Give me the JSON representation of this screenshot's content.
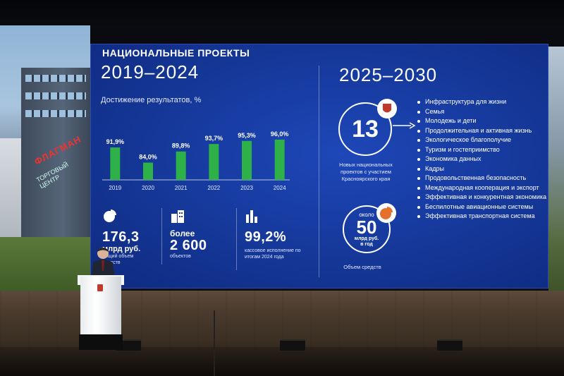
{
  "slide": {
    "heading": "НАЦИОНАЛЬНЫЕ ПРОЕКТЫ",
    "period_left": "2019–2024",
    "period_right": "2025–2030",
    "chart_title": "Достижение результатов, %",
    "colors": {
      "bar": "#2fb14a",
      "background": "#163a9e",
      "text": "#ffffff"
    },
    "stats": [
      {
        "icon": "pie-chart-icon",
        "value": "176,3",
        "unit": "млрд руб.",
        "caption": "общий объем средств"
      },
      {
        "icon": "buildings-icon",
        "value_prefix": "более",
        "value": "2 600",
        "caption": "объектов"
      },
      {
        "icon": "bar-chart-icon",
        "value": "99,2%",
        "caption": "кассовое исполнение по итогам 2024 года"
      }
    ],
    "projects_count": "13",
    "projects_caption": "Новых национальных проектов с участием Красноярского края",
    "funding_prefix": "около",
    "funding_value": "50",
    "funding_unit": "млрд руб. в год",
    "funding_caption": "Объем средств",
    "projects": [
      "Инфраструктура для жизни",
      "Семья",
      "Молодежь и дети",
      "Продолжительная и активная жизнь",
      "Экологическое благополучие",
      "Туризм и гостеприимство",
      "Экономика данных",
      "Кадры",
      "Продовольственная безопасность",
      "Международная кооперация и экспорт",
      "Эффективная и конкурентная экономика",
      "Беспилотные авиационные системы",
      "Эффективная транспортная система"
    ]
  },
  "left_screen": {
    "sign": "ФЛАГМАН",
    "sign_sub": "ТОРГОВЫЙ ЦЕНТР"
  },
  "chart_data": {
    "type": "bar",
    "categories": [
      "2019",
      "2020",
      "2021",
      "2022",
      "2023",
      "2024"
    ],
    "values": [
      91.9,
      84.0,
      89.8,
      93.7,
      95.3,
      96.0
    ],
    "labels": [
      "91,9%",
      "84,0%",
      "89,8%",
      "93,7%",
      "95,3%",
      "96,0%"
    ],
    "title": "Достижение результатов, %"
  }
}
